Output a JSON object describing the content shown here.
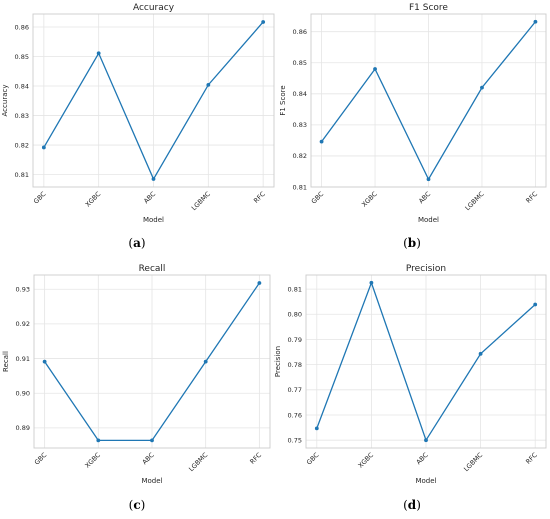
{
  "chart_data": [
    {
      "type": "line",
      "title": "Accuracy",
      "xlabel": "Model",
      "ylabel": "Accuracy",
      "categories": [
        "GBC",
        "XGBC",
        "ABC",
        "LGBMC",
        "RFC"
      ],
      "values": [
        0.8192,
        0.8511,
        0.8085,
        0.8404,
        0.8617
      ],
      "ylim": [
        0.8058,
        0.8644
      ],
      "yticks": [
        "0.81",
        "0.82",
        "0.83",
        "0.84",
        "0.85",
        "0.86"
      ],
      "color": "#1f77b4",
      "grid": true,
      "caption": "(a)"
    },
    {
      "type": "line",
      "title": "F1 Score",
      "xlabel": "Model",
      "ylabel": "F1 Score",
      "categories": [
        "GBC",
        "XGBC",
        "ABC",
        "LGBMC",
        "RFC"
      ],
      "values": [
        0.8246,
        0.848,
        0.8125,
        0.842,
        0.8632
      ],
      "ylim": [
        0.81,
        0.8657
      ],
      "yticks": [
        "0.81",
        "0.82",
        "0.83",
        "0.84",
        "0.85",
        "0.86"
      ],
      "color": "#1f77b4",
      "grid": true,
      "caption": "(b)"
    },
    {
      "type": "line",
      "title": "Recall",
      "xlabel": "Model",
      "ylabel": "Recall",
      "categories": [
        "GBC",
        "XGBC",
        "ABC",
        "LGBMC",
        "RFC"
      ],
      "values": [
        0.9091,
        0.8864,
        0.8864,
        0.9091,
        0.9318
      ],
      "ylim": [
        0.8842,
        0.9341
      ],
      "yticks": [
        "0.89",
        "0.90",
        "0.91",
        "0.92",
        "0.93"
      ],
      "color": "#1f77b4",
      "grid": true,
      "caption": "(c)"
    },
    {
      "type": "line",
      "title": "Precision",
      "xlabel": "Model",
      "ylabel": "Precision",
      "categories": [
        "GBC",
        "XGBC",
        "ABC",
        "LGBMC",
        "RFC"
      ],
      "values": [
        0.7547,
        0.8125,
        0.75,
        0.7843,
        0.8039
      ],
      "ylim": [
        0.7469,
        0.8156
      ],
      "yticks": [
        "0.75",
        "0.76",
        "0.77",
        "0.78",
        "0.79",
        "0.80",
        "0.81"
      ],
      "color": "#1f77b4",
      "grid": true,
      "caption": "(d)"
    }
  ]
}
